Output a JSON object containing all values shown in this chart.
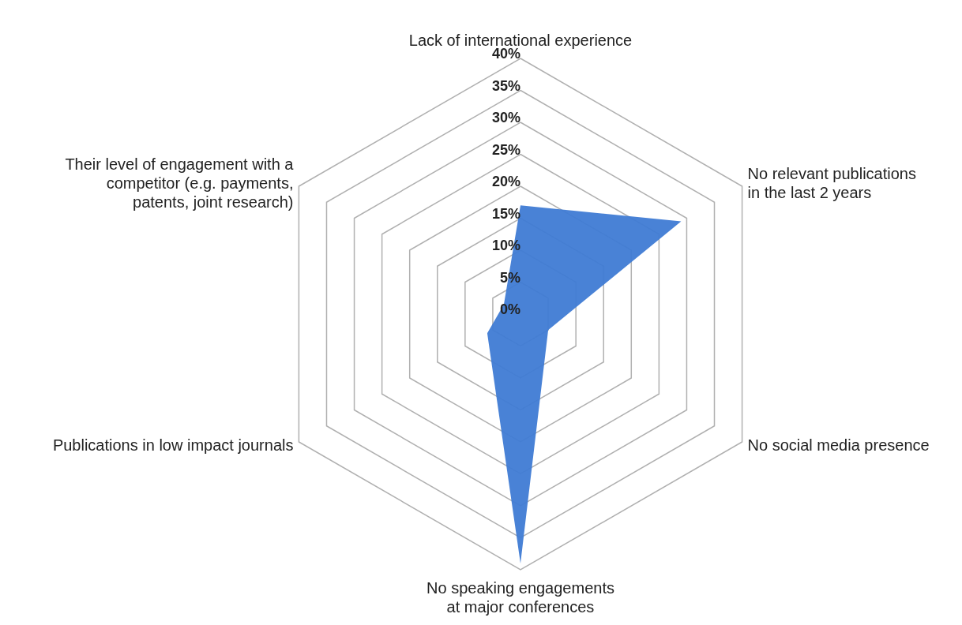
{
  "chart_data": {
    "type": "radar",
    "categories": [
      "Lack of international experience",
      "No relevant publications\nin the last 2 years",
      "No social media presence",
      "No speaking engagements\nat major conferences",
      "Publications in low impact journals",
      "Their level of engagement with a\ncompetitor (e.g. payments,\npatents, joint research)"
    ],
    "series": [
      {
        "color": "#3f7bd4",
        "values": [
          17,
          29,
          5,
          39,
          6,
          3
        ]
      }
    ],
    "ylim": [
      0,
      40
    ],
    "yticks": [
      {
        "value": 0,
        "label": "0%"
      },
      {
        "value": 5,
        "label": "5%"
      },
      {
        "value": 10,
        "label": "10%"
      },
      {
        "value": 15,
        "label": "15%"
      },
      {
        "value": 20,
        "label": "20%"
      },
      {
        "value": 25,
        "label": "25%"
      },
      {
        "value": 30,
        "label": "30%"
      },
      {
        "value": 35,
        "label": "35%"
      },
      {
        "value": 40,
        "label": "40%"
      }
    ],
    "grid": true
  }
}
